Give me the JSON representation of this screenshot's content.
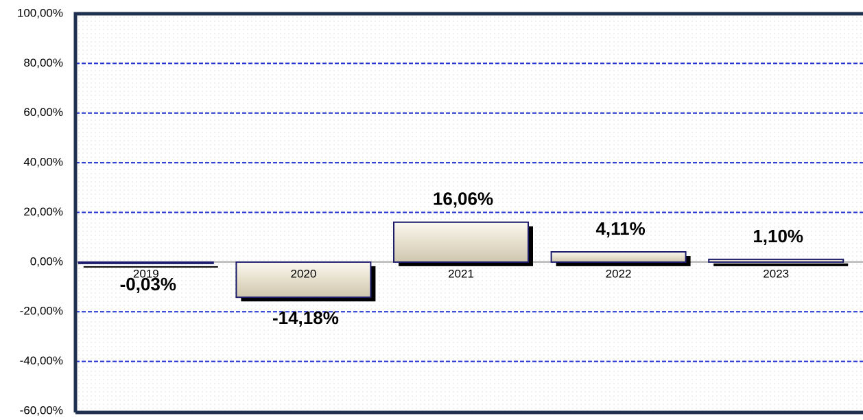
{
  "chart_data": {
    "type": "bar",
    "categories": [
      "2019",
      "2020",
      "2021",
      "2022",
      "2023"
    ],
    "values": [
      -0.03,
      -14.18,
      16.06,
      4.11,
      1.1
    ],
    "value_labels": [
      "-0,03%",
      "-14,18%",
      "16,06%",
      "4,11%",
      "1,10%"
    ],
    "color": "#e6dfcc",
    "ylim": [
      -60,
      100
    ],
    "yticks": [
      {
        "value": -60,
        "label": "-60,00%"
      },
      {
        "value": -40,
        "label": "-40,00%"
      },
      {
        "value": -20,
        "label": "-20,00%"
      },
      {
        "value": 0,
        "label": "0,00%"
      },
      {
        "value": 20,
        "label": "20,00%"
      },
      {
        "value": 40,
        "label": "40,00%"
      },
      {
        "value": 60,
        "label": "60,00%"
      },
      {
        "value": 80,
        "label": "80,00%"
      },
      {
        "value": 100,
        "label": "100,00%"
      }
    ],
    "grid": true
  }
}
